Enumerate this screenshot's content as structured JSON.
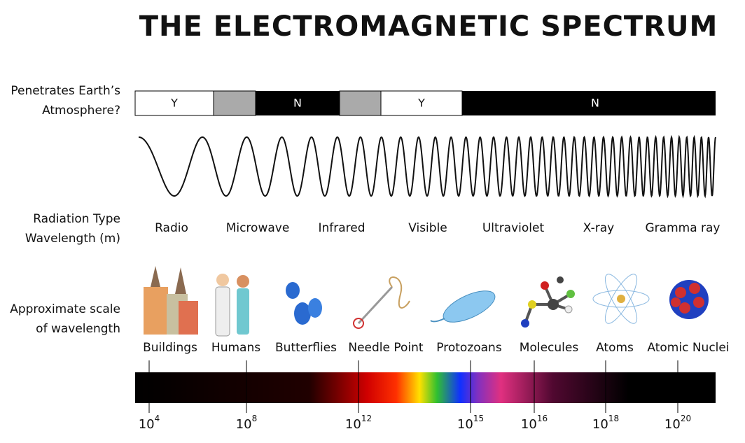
{
  "header": {
    "title": "THE ELECTROMAGNETIC SPECTRUM"
  },
  "rows": {
    "atmosphere": "Penetrates Earth’s\nAtmosphere?",
    "radiation": "Radiation Type\nWavelength (m)",
    "scale": "Approximate scale\nof wavelength"
  },
  "atmosphere_segments": [
    "Y",
    "N",
    "Y",
    "N"
  ],
  "radiation_types": [
    "Radio",
    "Microwave",
    "Infrared",
    "Visible",
    "Ultraviolet",
    "X-ray",
    "Gramma ray"
  ],
  "scale_items": [
    "Buildings",
    "Humans",
    "Butterflies",
    "Needle Point",
    "Protozoans",
    "Molecules",
    "Atoms",
    "Atomic Nuclei"
  ],
  "wavelength_ticks": [
    {
      "base": "10",
      "exponent": "4"
    },
    {
      "base": "10",
      "exponent": "8"
    },
    {
      "base": "10",
      "exponent": "12"
    },
    {
      "base": "10",
      "exponent": "15"
    },
    {
      "base": "10",
      "exponent": "16"
    },
    {
      "base": "10",
      "exponent": "18"
    },
    {
      "base": "10",
      "exponent": "20"
    }
  ]
}
